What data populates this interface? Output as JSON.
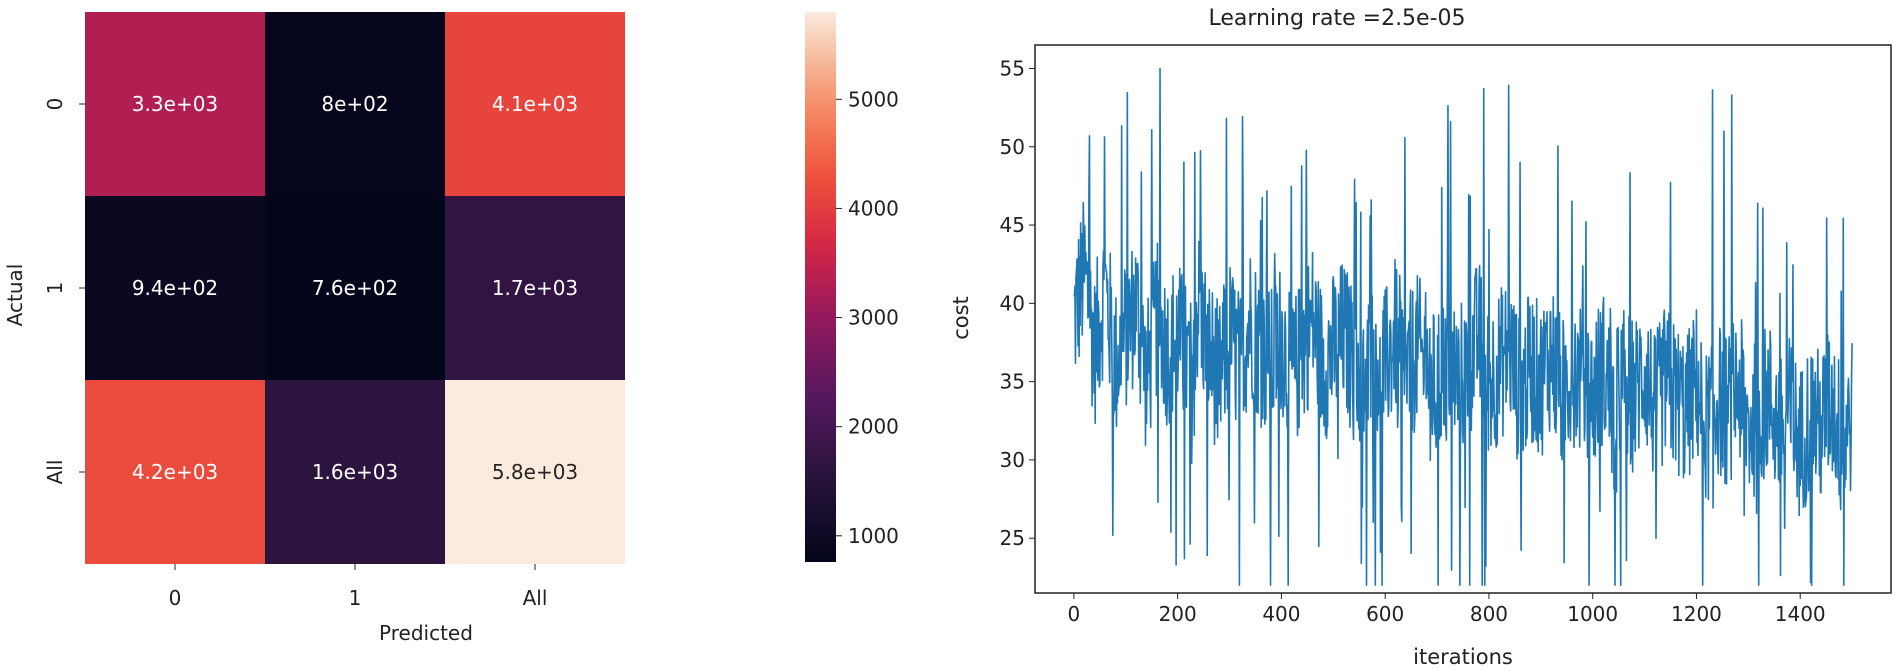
{
  "chart_data": [
    {
      "type": "heatmap",
      "title": "",
      "xlabel": "Predicted",
      "ylabel": "Actual",
      "x_categories": [
        "0",
        "1",
        "All"
      ],
      "y_categories": [
        "0",
        "1",
        "All"
      ],
      "values": [
        [
          3300,
          800,
          4100
        ],
        [
          940,
          760,
          1700
        ],
        [
          4200,
          1600,
          5800
        ]
      ],
      "annotations": [
        [
          "3.3e+03",
          "8e+02",
          "4.1e+03"
        ],
        [
          "9.4e+02",
          "7.6e+02",
          "1.7e+03"
        ],
        [
          "4.2e+03",
          "1.6e+03",
          "5.8e+03"
        ]
      ],
      "colormap": "rocket",
      "colorbar": {
        "range": [
          760,
          5800
        ],
        "ticks": [
          1000,
          2000,
          3000,
          4000,
          5000
        ],
        "tick_labels": [
          "1000",
          "2000",
          "3000",
          "4000",
          "5000"
        ]
      }
    },
    {
      "type": "line",
      "title": "Learning rate =2.5e-05",
      "xlabel": "iterations",
      "ylabel": "cost",
      "xlim": [
        -75,
        1575
      ],
      "ylim": [
        21.5,
        56.5
      ],
      "x_ticks": [
        0,
        200,
        400,
        600,
        800,
        1000,
        1200,
        1400
      ],
      "x_tick_labels": [
        "0",
        "200",
        "400",
        "600",
        "800",
        "1000",
        "1200",
        "1400"
      ],
      "y_ticks": [
        25,
        30,
        35,
        40,
        45,
        50,
        55
      ],
      "y_tick_labels": [
        "25",
        "30",
        "35",
        "40",
        "45",
        "50",
        "55"
      ],
      "grid": false,
      "series": [
        {
          "color": "#1f77b4",
          "x_start": 0,
          "x_step": 20,
          "y": [
            39,
            42,
            37,
            41,
            36,
            38,
            40,
            35,
            39,
            37,
            38,
            36,
            40,
            37,
            35,
            38,
            36,
            39,
            37,
            36,
            38,
            35,
            37,
            39,
            36,
            37,
            38,
            36,
            35,
            37,
            36,
            38,
            35,
            37,
            36,
            34,
            37,
            35,
            36,
            38,
            35,
            36,
            37,
            34,
            36,
            35,
            37,
            34,
            36,
            35,
            34,
            36,
            33,
            35,
            34,
            36,
            33,
            35,
            34,
            33,
            35,
            32,
            34,
            33,
            35,
            32,
            33,
            34,
            32,
            33,
            31,
            33,
            32,
            34,
            31,
            33,
            32,
            31
          ]
        }
      ],
      "visible_y_range": {
        "max": 55,
        "min": 22
      }
    }
  ]
}
